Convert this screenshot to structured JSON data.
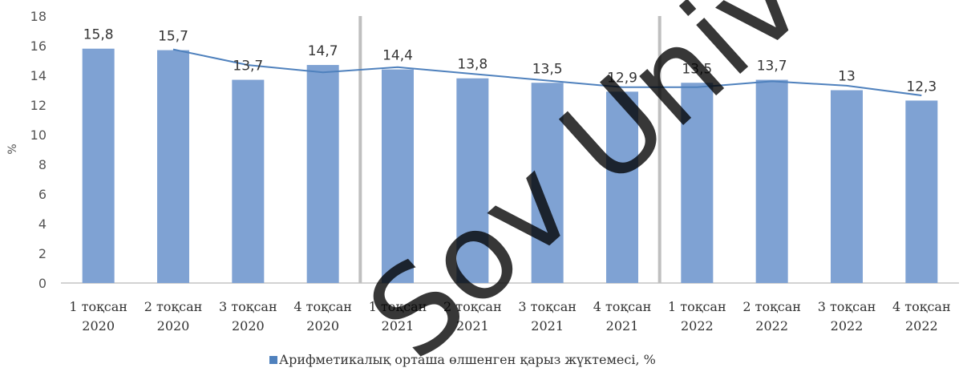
{
  "chart_data": {
    "type": "bar",
    "categories": [
      [
        "1 тоқсан",
        "2020"
      ],
      [
        "2 тоқсан",
        "2020"
      ],
      [
        "3 тоқсан",
        "2020"
      ],
      [
        "4 тоқсан",
        "2020"
      ],
      [
        "1 тоқсан",
        "2021"
      ],
      [
        "2 тоқсан",
        "2021"
      ],
      [
        "3 тоқсан",
        "2021"
      ],
      [
        "4 тоқсан",
        "2021"
      ],
      [
        "1 тоқсан",
        "2022"
      ],
      [
        "2 тоқсан",
        "2022"
      ],
      [
        "3 тоқсан",
        "2022"
      ],
      [
        "4 тоқсан",
        "2022"
      ]
    ],
    "values": [
      15.8,
      15.7,
      13.7,
      14.7,
      14.4,
      13.8,
      13.5,
      12.9,
      13.5,
      13.7,
      13.0,
      12.3
    ],
    "data_labels": [
      "15,8",
      "15,7",
      "13,7",
      "14,7",
      "14,4",
      "13,8",
      "13,5",
      "12,9",
      "13,5",
      "13,7",
      "13",
      "12,3"
    ],
    "trend_line": [
      15.75,
      14.7,
      14.2,
      14.55,
      14.1,
      13.65,
      13.2,
      13.2,
      13.6,
      13.3,
      12.65
    ],
    "ylabel": "%",
    "ylim": [
      0,
      18
    ],
    "yticks": [
      0,
      2,
      4,
      6,
      8,
      10,
      12,
      14,
      16,
      18
    ],
    "legend": {
      "label": "Арифметикалық орташа өлшенген қарыз жүктемесі, %",
      "position": "bottom-center"
    },
    "year_separators_after": [
      4,
      8
    ],
    "colors": {
      "bar": "#7FA2D3",
      "line": "#4F81BD",
      "separator": "#BFBFBF",
      "axis": "#A6A6A6"
    }
  },
  "watermark": "Sov Univer"
}
